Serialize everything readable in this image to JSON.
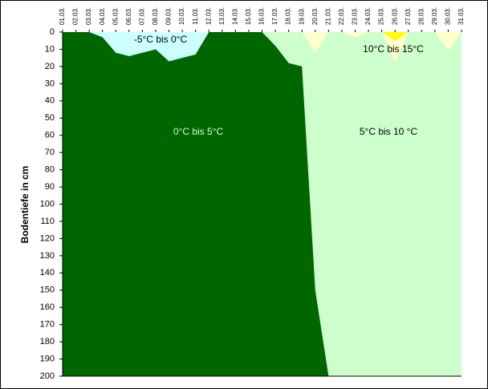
{
  "chart_data": {
    "type": "area",
    "y_label": "Bodentiefe in cm",
    "categories": [
      "01.03.",
      "02.03.",
      "03.03.",
      "04.03.",
      "05.03.",
      "06.03.",
      "07.03.",
      "08.03.",
      "09.03.",
      "10.03.",
      "11.03.",
      "12.03.",
      "13.03.",
      "14.03.",
      "15.03.",
      "16.03.",
      "17.03.",
      "18.03.",
      "19.03.",
      "20.03.",
      "21.03.",
      "22.03.",
      "23.03.",
      "24.03.",
      "25.03.",
      "26.03.",
      "27.03.",
      "28.03.",
      "29.03.",
      "30.03.",
      "31.03."
    ],
    "ylim": [
      0,
      200
    ],
    "y_inverted": true,
    "yticks": [
      0,
      10,
      20,
      30,
      40,
      50,
      60,
      70,
      80,
      90,
      100,
      110,
      120,
      130,
      140,
      150,
      160,
      170,
      180,
      190,
      200
    ],
    "series": [
      {
        "name": "5°C bis 10 °C",
        "color": "#ccffcc"
      },
      {
        "name": "0°C bis 5°C",
        "color": "#006600",
        "values": [
          0,
          0,
          0,
          0,
          0,
          0,
          0,
          0,
          0,
          0,
          0,
          0,
          0,
          0,
          0,
          0,
          8,
          18,
          20,
          150,
          200,
          null,
          null,
          null,
          null,
          null,
          null,
          null,
          null,
          null,
          null
        ]
      },
      {
        "name": "-5°C bis 0°C",
        "color": "#ccffff",
        "values": [
          null,
          null,
          0,
          3,
          12,
          14,
          12,
          10,
          17,
          15,
          13,
          0,
          null,
          null,
          null,
          null,
          null,
          null,
          null,
          null,
          null,
          null,
          null,
          null,
          null,
          null,
          null,
          null,
          null,
          null,
          null
        ]
      },
      {
        "name": "10°C bis 15°C",
        "color": "#ffffcc",
        "values": [
          null,
          null,
          null,
          null,
          null,
          null,
          null,
          null,
          null,
          null,
          null,
          null,
          null,
          null,
          null,
          null,
          null,
          null,
          0,
          12,
          0,
          0,
          3,
          0,
          0,
          18,
          0,
          null,
          0,
          11,
          0
        ]
      },
      {
        "color": "#ffff00",
        "values": [
          null,
          null,
          null,
          null,
          null,
          null,
          null,
          null,
          null,
          null,
          null,
          null,
          null,
          null,
          null,
          null,
          null,
          null,
          null,
          null,
          null,
          null,
          null,
          null,
          0,
          5,
          0,
          null,
          null,
          null,
          null
        ]
      }
    ]
  }
}
